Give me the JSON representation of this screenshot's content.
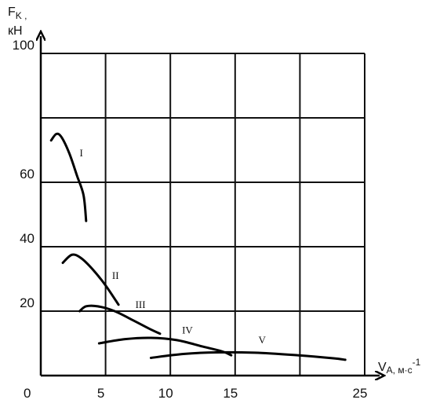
{
  "chart_data": {
    "type": "line",
    "xlabel": "V",
    "xlabel_sub": "A, м·с",
    "xlabel_sup": "-1",
    "ylabel_line1": "F",
    "ylabel_sub": "K",
    "ylabel_tail": " ,",
    "ylabel_line2": "кН",
    "origin_label": "0",
    "xlim": [
      0,
      25
    ],
    "ylim": [
      0,
      100
    ],
    "grid": true,
    "x_ticks": [
      {
        "value": 5,
        "label": "5"
      },
      {
        "value": 10,
        "label": "10"
      },
      {
        "value": 15,
        "label": "15"
      },
      {
        "value": 25,
        "label": "25"
      }
    ],
    "y_ticks": [
      {
        "value": 20,
        "label": "20"
      },
      {
        "value": 40,
        "label": "40"
      },
      {
        "value": 60,
        "label": "60"
      },
      {
        "value": 100,
        "label": "100"
      }
    ],
    "grid_x": [
      5,
      10,
      15,
      20,
      25
    ],
    "grid_y": [
      20,
      40,
      60,
      80,
      100
    ],
    "series": [
      {
        "name": "I",
        "label_at": [
          3.0,
          68
        ],
        "points": [
          [
            0.8,
            73
          ],
          [
            1.2,
            75
          ],
          [
            1.6,
            74
          ],
          [
            2.2,
            69
          ],
          [
            2.8,
            62
          ],
          [
            3.3,
            56
          ],
          [
            3.5,
            48
          ]
        ]
      },
      {
        "name": "II",
        "label_at": [
          5.5,
          30
        ],
        "points": [
          [
            1.7,
            35
          ],
          [
            2.4,
            37.5
          ],
          [
            3.1,
            36.5
          ],
          [
            4.0,
            33
          ],
          [
            5.0,
            28
          ],
          [
            6.0,
            22
          ]
        ]
      },
      {
        "name": "III",
        "label_at": [
          7.3,
          21
        ],
        "points": [
          [
            3.0,
            20
          ],
          [
            3.5,
            21.5
          ],
          [
            4.4,
            21.5
          ],
          [
            5.7,
            20
          ],
          [
            7.2,
            17
          ],
          [
            8.4,
            14.5
          ],
          [
            9.2,
            13
          ]
        ]
      },
      {
        "name": "IV",
        "label_at": [
          10.9,
          13
        ],
        "points": [
          [
            4.5,
            10
          ],
          [
            6.5,
            11.3
          ],
          [
            8.5,
            11.7
          ],
          [
            10.5,
            11
          ],
          [
            12.5,
            9
          ],
          [
            14.0,
            7.5
          ],
          [
            14.7,
            6.3
          ]
        ]
      },
      {
        "name": "V",
        "label_at": [
          16.8,
          10
        ],
        "points": [
          [
            8.5,
            5.5
          ],
          [
            11.0,
            6.7
          ],
          [
            13.5,
            7.2
          ],
          [
            16.5,
            7.1
          ],
          [
            19.5,
            6.4
          ],
          [
            22.5,
            5.4
          ],
          [
            23.5,
            4.9
          ]
        ]
      }
    ]
  }
}
